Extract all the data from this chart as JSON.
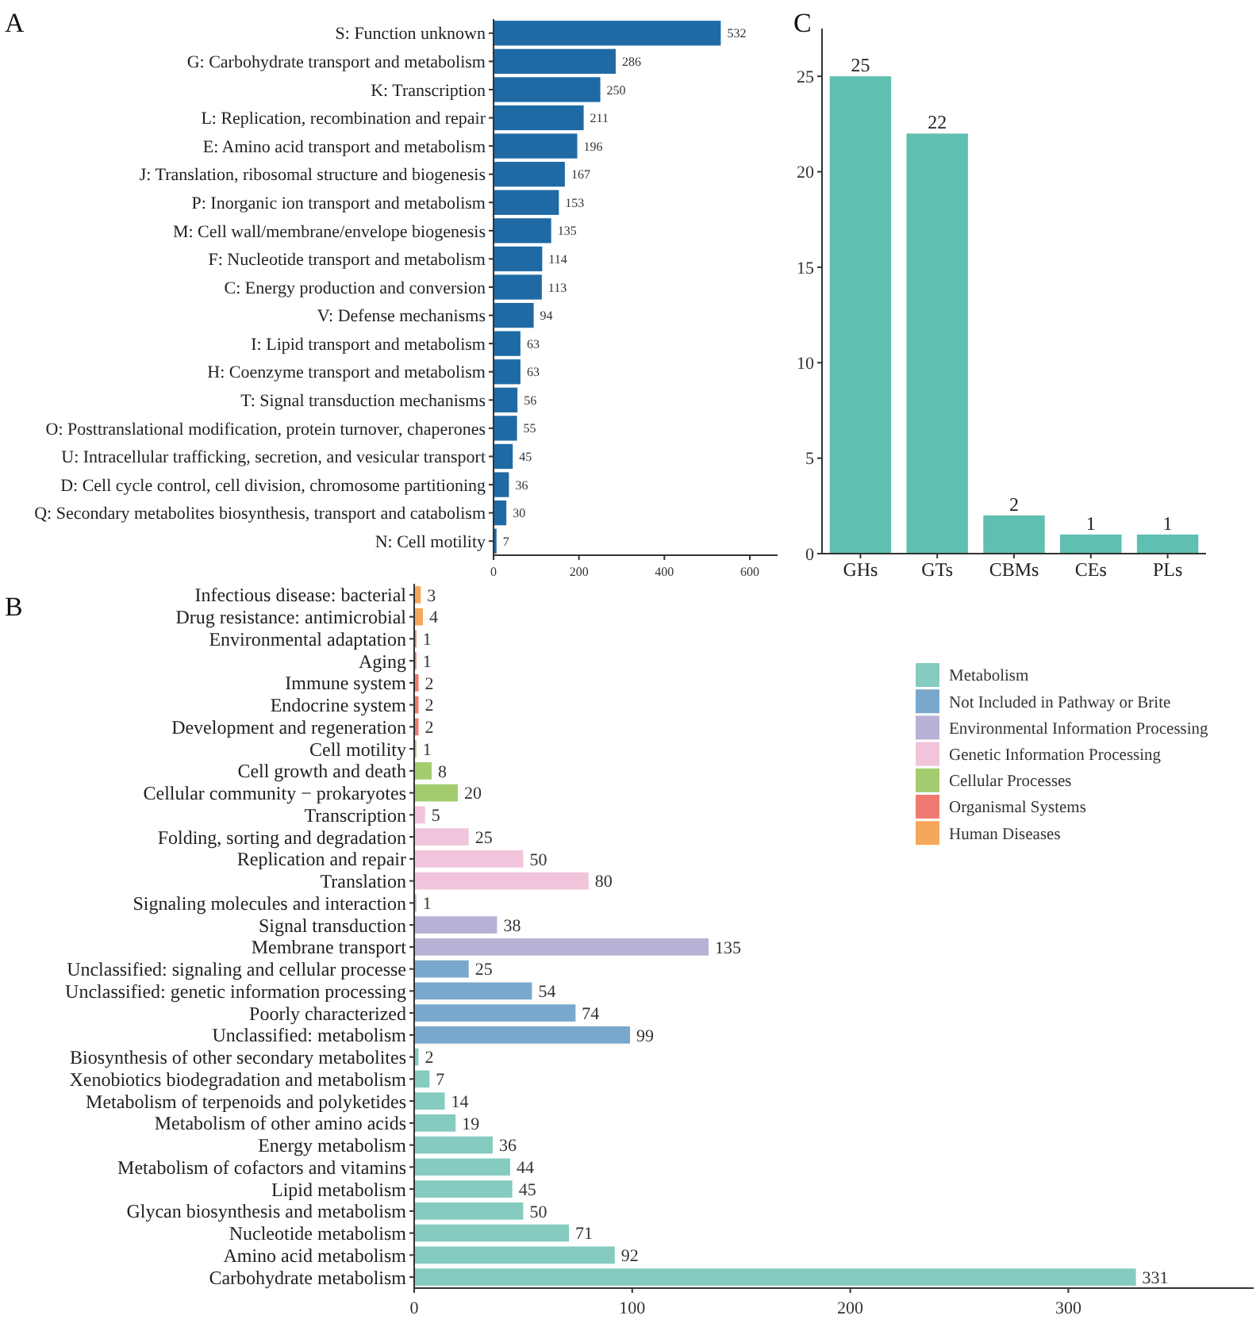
{
  "chart_data": [
    {
      "type": "bar",
      "title": "A",
      "orientation": "horizontal",
      "categories": [
        "S: Function unknown",
        "G: Carbohydrate transport and metabolism",
        "K: Transcription",
        "L: Replication, recombination and repair",
        "E: Amino acid transport and metabolism",
        "J: Translation, ribosomal structure and biogenesis",
        "P: Inorganic ion transport and metabolism",
        "M: Cell wall/membrane/envelope biogenesis",
        "F: Nucleotide transport and metabolism",
        "C: Energy production and conversion",
        "V: Defense mechanisms",
        "I: Lipid transport and metabolism",
        "H: Coenzyme transport and metabolism",
        "T: Signal transduction mechanisms",
        "O: Posttranslational modification, protein turnover, chaperones",
        "U: Intracellular trafficking, secretion, and vesicular transport",
        "D: Cell cycle control, cell division, chromosome partitioning",
        "Q: Secondary metabolites biosynthesis, transport and catabolism",
        "N: Cell motility"
      ],
      "values": [
        532,
        286,
        250,
        211,
        196,
        167,
        153,
        135,
        114,
        113,
        94,
        63,
        63,
        56,
        55,
        45,
        36,
        30,
        7
      ],
      "color": "#1f6aa5",
      "xlim": [
        0,
        665
      ],
      "xticks": [
        0,
        200,
        400,
        600
      ],
      "data_labels": true,
      "grid": false,
      "legend": false
    },
    {
      "type": "bar",
      "title": "C",
      "categories": [
        "GHs",
        "GTs",
        "CBMs",
        "CEs",
        "PLs"
      ],
      "values": [
        25,
        22,
        2,
        1,
        1
      ],
      "color": "#5fbfb0",
      "ylim": [
        0,
        27.5
      ],
      "yticks": [
        0,
        5,
        10,
        15,
        20,
        25
      ],
      "data_labels": true,
      "grid": false,
      "legend": false
    },
    {
      "type": "bar",
      "title": "B",
      "orientation": "horizontal",
      "categories": [
        "Infectious disease: bacterial",
        "Drug resistance: antimicrobial",
        "Environmental adaptation",
        "Aging",
        "Immune system",
        "Endocrine system",
        "Development and regeneration",
        "Cell motility",
        "Cell growth and death",
        "Cellular community − prokaryotes",
        "Transcription",
        "Folding, sorting and degradation",
        "Replication and repair",
        "Translation",
        "Signaling molecules and interaction",
        "Signal transduction",
        "Membrane transport",
        "Unclassified: signaling and cellular processe",
        "Unclassified: genetic information processing",
        "Poorly characterized",
        "Unclassified: metabolism",
        "Biosynthesis of other secondary metabolites",
        "Xenobiotics biodegradation and metabolism",
        "Metabolism of terpenoids and polyketides",
        "Metabolism of other amino acids",
        "Energy metabolism",
        "Metabolism of cofactors and vitamins",
        "Lipid metabolism",
        "Glycan biosynthesis and metabolism",
        "Nucleotide metabolism",
        "Amino acid metabolism",
        "Carbohydrate metabolism"
      ],
      "series": [
        {
          "name": "Metabolism",
          "color": "#85cbbf",
          "values": [
            null,
            null,
            null,
            null,
            null,
            null,
            null,
            null,
            null,
            null,
            null,
            null,
            null,
            null,
            null,
            null,
            null,
            null,
            null,
            null,
            null,
            2,
            7,
            14,
            19,
            36,
            44,
            45,
            50,
            71,
            92,
            331
          ]
        },
        {
          "name": "Not Included in Pathway or Brite",
          "color": "#79a8cc",
          "values": [
            null,
            null,
            null,
            null,
            null,
            null,
            null,
            null,
            null,
            null,
            null,
            null,
            null,
            null,
            null,
            null,
            null,
            25,
            54,
            74,
            99,
            null,
            null,
            null,
            null,
            null,
            null,
            null,
            null,
            null,
            null,
            null
          ]
        },
        {
          "name": "Environmental Information Processing",
          "color": "#b7b1d6",
          "values": [
            null,
            null,
            null,
            null,
            null,
            null,
            null,
            null,
            null,
            null,
            null,
            null,
            null,
            null,
            1,
            38,
            135,
            null,
            null,
            null,
            null,
            null,
            null,
            null,
            null,
            null,
            null,
            null,
            null,
            null,
            null,
            null
          ]
        },
        {
          "name": "Genetic Information Processing",
          "color": "#f2c4dc",
          "values": [
            null,
            null,
            null,
            null,
            null,
            null,
            null,
            null,
            null,
            null,
            5,
            25,
            50,
            80,
            null,
            null,
            null,
            null,
            null,
            null,
            null,
            null,
            null,
            null,
            null,
            null,
            null,
            null,
            null,
            null,
            null,
            null
          ]
        },
        {
          "name": "Cellular Processes",
          "color": "#a3cc6e",
          "values": [
            null,
            null,
            null,
            null,
            null,
            null,
            null,
            1,
            8,
            20,
            null,
            null,
            null,
            null,
            null,
            null,
            null,
            null,
            null,
            null,
            null,
            null,
            null,
            null,
            null,
            null,
            null,
            null,
            null,
            null,
            null,
            null
          ]
        },
        {
          "name": "Organismal Systems",
          "color": "#ee7b6f",
          "values": [
            null,
            null,
            1,
            1,
            2,
            2,
            2,
            null,
            null,
            null,
            null,
            null,
            null,
            null,
            null,
            null,
            null,
            null,
            null,
            null,
            null,
            null,
            null,
            null,
            null,
            null,
            null,
            null,
            null,
            null,
            null,
            null
          ]
        },
        {
          "name": "Human Diseases",
          "color": "#f5a85c",
          "values": [
            3,
            4,
            null,
            null,
            null,
            null,
            null,
            null,
            null,
            null,
            null,
            null,
            null,
            null,
            null,
            null,
            null,
            null,
            null,
            null,
            null,
            null,
            null,
            null,
            null,
            null,
            null,
            null,
            null,
            null,
            null,
            null
          ]
        }
      ],
      "xlim": [
        0,
        385
      ],
      "xticks": [
        0,
        100,
        200,
        300
      ],
      "data_labels": true,
      "grid": false,
      "legend": "top right"
    }
  ]
}
